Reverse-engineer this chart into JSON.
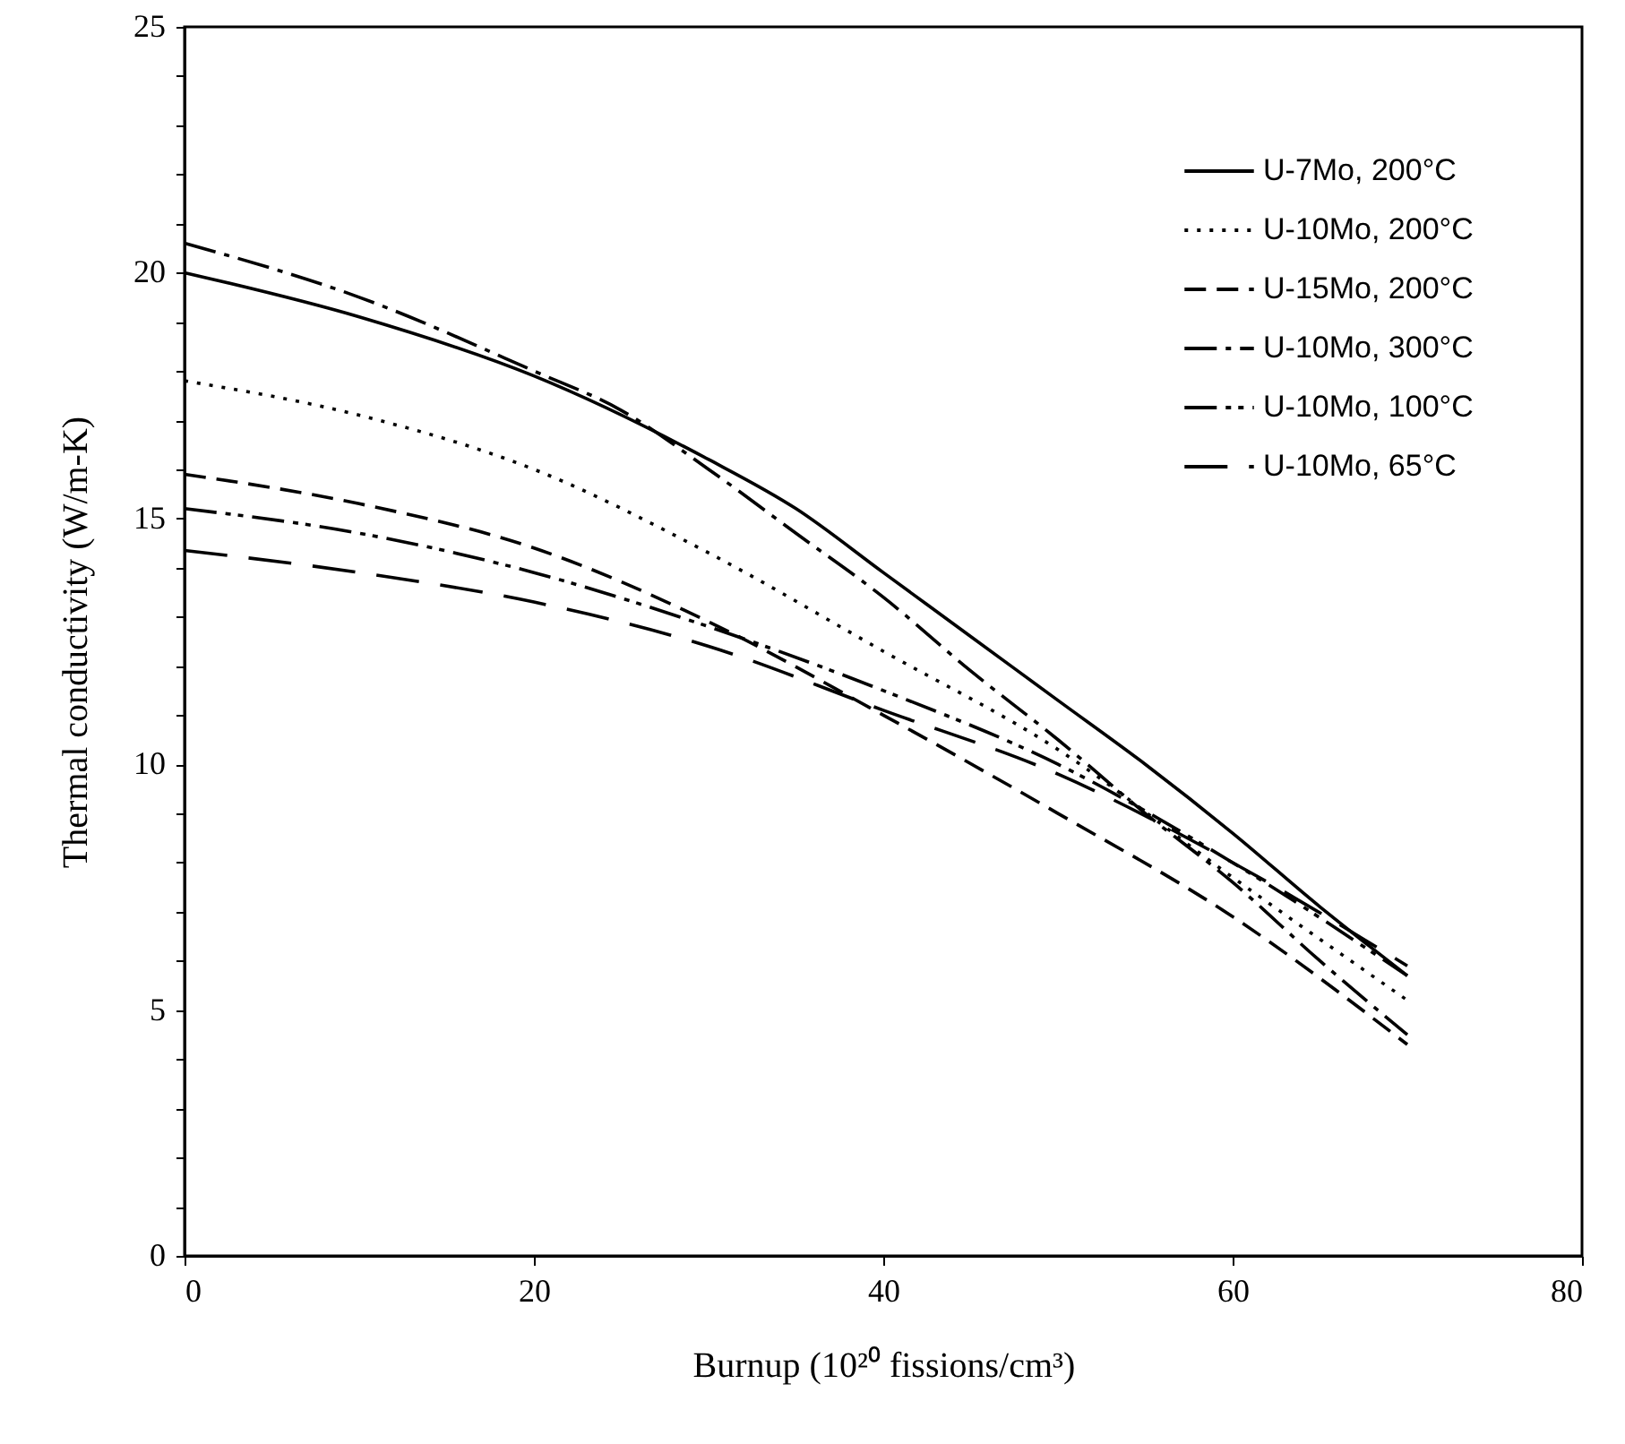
{
  "chart_data": {
    "type": "line",
    "xlabel": "Burnup (10²⁰ fissions/cm³)",
    "ylabel": "Thermal conductivity (W/m-K)",
    "xlim": [
      0,
      80
    ],
    "xticks": [
      0,
      20,
      40,
      60,
      80
    ],
    "ylim": [
      0,
      25
    ],
    "yticks": [
      0,
      {
        "value": 1,
        "label": null
      },
      {
        "value": 2,
        "label": null
      },
      {
        "value": 3,
        "label": null
      },
      {
        "value": 4,
        "label": null
      },
      5,
      {
        "value": 6,
        "label": null
      },
      {
        "value": 7,
        "label": null
      },
      {
        "value": 8,
        "label": null
      },
      {
        "value": 9,
        "label": null
      },
      10,
      {
        "value": 11,
        "label": null
      },
      {
        "value": 12,
        "label": null
      },
      {
        "value": 13,
        "label": null
      },
      {
        "value": 14,
        "label": null
      },
      15,
      {
        "value": 16,
        "label": null
      },
      {
        "value": 17,
        "label": null
      },
      {
        "value": 18,
        "label": null
      },
      {
        "value": 19,
        "label": null
      },
      20,
      {
        "value": 21,
        "label": null
      },
      {
        "value": 22,
        "label": null
      },
      {
        "value": 23,
        "label": null
      },
      {
        "value": 24,
        "label": null
      },
      25
    ],
    "grid": false,
    "legend": "top right",
    "marker": "none",
    "series": [
      {
        "name": "U-7Mo, 200°C",
        "color": "#000000",
        "line_style": "solid",
        "x": [
          0,
          10,
          20,
          30,
          35,
          40,
          45,
          50,
          55,
          60,
          65,
          70
        ],
        "values": [
          20.0,
          19.1,
          17.9,
          16.2,
          15.2,
          13.9,
          12.6,
          11.3,
          10.0,
          8.6,
          7.1,
          5.7
        ]
      },
      {
        "name": "U-10Mo, 200°C",
        "color": "#000000",
        "line_style": "dotted",
        "x": [
          0,
          10,
          20,
          30,
          40,
          50,
          60,
          70
        ],
        "values": [
          17.8,
          17.1,
          16.0,
          14.3,
          12.3,
          10.3,
          7.7,
          5.2
        ]
      },
      {
        "name": "U-15Mo, 200°C",
        "color": "#000000",
        "line_style": "dashed",
        "x": [
          0,
          10,
          20,
          30,
          40,
          50,
          60,
          70
        ],
        "values": [
          15.9,
          15.3,
          14.4,
          12.9,
          11.0,
          9.0,
          6.9,
          4.3
        ]
      },
      {
        "name": "U-10Mo, 300°C",
        "color": "#000000",
        "line_style": "dashdot",
        "x": [
          0,
          10,
          20,
          25,
          30,
          35,
          40,
          45,
          50,
          55,
          60,
          65,
          70
        ],
        "values": [
          20.6,
          19.5,
          18.0,
          17.2,
          16.0,
          14.7,
          13.4,
          11.9,
          10.5,
          9.0,
          7.6,
          6.0,
          4.5
        ]
      },
      {
        "name": "U-10Mo, 100°C",
        "color": "#000000",
        "line_style": "dashdotdot",
        "x": [
          0,
          10,
          20,
          30,
          40,
          50,
          60,
          70
        ],
        "values": [
          15.2,
          14.7,
          13.9,
          12.8,
          11.5,
          10.0,
          8.0,
          5.7
        ]
      },
      {
        "name": "U-10Mo, 65°C",
        "color": "#000000",
        "line_style": "longdash",
        "x": [
          0,
          10,
          20,
          30,
          40,
          50,
          60,
          70
        ],
        "values": [
          14.35,
          13.9,
          13.3,
          12.4,
          11.1,
          9.8,
          8.0,
          5.9
        ]
      }
    ]
  }
}
